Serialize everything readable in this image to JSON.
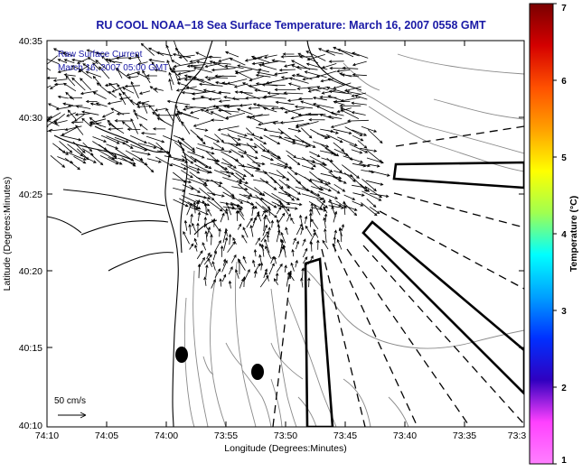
{
  "title": "RU COOL  NOAA−18  Sea Surface Temperature:  March 16, 2007 0558 GMT",
  "legend": {
    "line1": "Raw Surface Current",
    "line2": "March 16, 2007 05:00 GMT"
  },
  "scale_label": "50 cm/s",
  "axes": {
    "xlabel": "Longitude (Degrees:Minutes)",
    "ylabel": "Latitude (Degrees:Minutes)",
    "xticks": [
      "74:10",
      "74:05",
      "74:00",
      "73:55",
      "73:50",
      "73:45",
      "73:40",
      "73:35",
      "73:3"
    ],
    "yticks": [
      "40:35",
      "40:30",
      "40:25",
      "40:20",
      "40:15",
      "40:10"
    ]
  },
  "colorbar": {
    "label": "Temperature (°C)",
    "ticks": [
      "7",
      "6",
      "5",
      "4",
      "3",
      "2",
      "1"
    ],
    "stops": [
      "#7a0000",
      "#d40000",
      "#ff5000",
      "#ffa000",
      "#ffff00",
      "#a0ff50",
      "#00ffff",
      "#00a0ff",
      "#0030ff",
      "#3000c0",
      "#ff40ff",
      "#ff80ff"
    ]
  },
  "colors": {
    "title": "#1a1aa6",
    "legend_text": "#1a1aa6",
    "contour": "#8a8a8a",
    "coast": "#000000"
  }
}
